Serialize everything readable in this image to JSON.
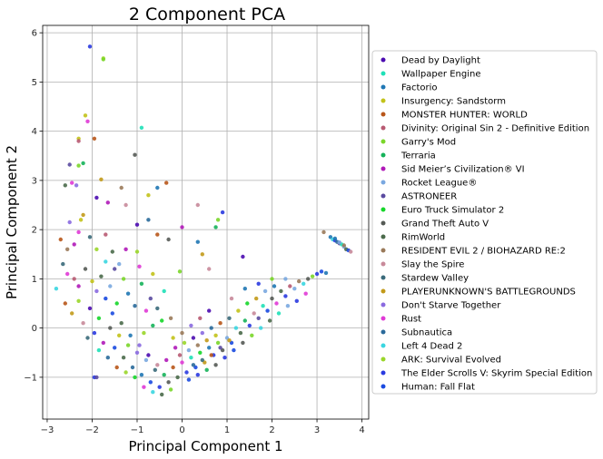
{
  "chart_data": {
    "type": "scatter",
    "title": "2 Component PCA",
    "xlabel": "Principal Component 1",
    "ylabel": "Principal Component 2",
    "xlim": [
      -3.1,
      4.15
    ],
    "ylim": [
      -1.85,
      6.15
    ],
    "xticks": [
      -3,
      -2,
      -1,
      0,
      1,
      2,
      3,
      4
    ],
    "yticks": [
      -1,
      0,
      1,
      2,
      3,
      4,
      5,
      6
    ],
    "grid": true,
    "legend_position": "right, outside plot area",
    "series": [
      {
        "name": "Dead by Daylight",
        "color": "#4b0bb0"
      },
      {
        "name": "Wallpaper Engine",
        "color": "#1fe0b7"
      },
      {
        "name": "Factorio",
        "color": "#1f77b4"
      },
      {
        "name": "Insurgency: Sandstorm",
        "color": "#c2c21a"
      },
      {
        "name": "MONSTER HUNTER: WORLD",
        "color": "#b8561a"
      },
      {
        "name": "Divinity: Original Sin 2 - Definitive Edition",
        "color": "#b85a72"
      },
      {
        "name": "Garry's Mod",
        "color": "#7ad62a"
      },
      {
        "name": "Terraria",
        "color": "#16b25a"
      },
      {
        "name": "Sid Meier's Civilization® VI",
        "color": "#b01ab8"
      },
      {
        "name": "Rocket League®",
        "color": "#7aa8e0"
      },
      {
        "name": "ASTRONEER",
        "color": "#5a4aa0"
      },
      {
        "name": "Euro Truck Simulator 2",
        "color": "#16d62a"
      },
      {
        "name": "Grand Theft Auto V",
        "color": "#555a55"
      },
      {
        "name": "RimWorld",
        "color": "#4a6a4a"
      },
      {
        "name": "RESIDENT EVIL 2 / BIOHAZARD RE:2",
        "color": "#9a7a5a"
      },
      {
        "name": "Slay the Spire",
        "color": "#c88a9a"
      },
      {
        "name": "Stardew Valley",
        "color": "#3a6a7a"
      },
      {
        "name": "PLAYERUNKNOWN'S BATTLEGROUNDS",
        "color": "#c29a1a"
      },
      {
        "name": "Don't Starve Together",
        "color": "#8a6ae0"
      },
      {
        "name": "Rust",
        "color": "#e03ad6"
      },
      {
        "name": "Subnautica",
        "color": "#2a6a9a"
      },
      {
        "name": "Left 4 Dead 2",
        "color": "#3ad6e0"
      },
      {
        "name": "ARK: Survival Evolved",
        "color": "#9ad62a"
      },
      {
        "name": "The Elder Scrolls V: Skyrim Special Edition",
        "color": "#2a3ae0"
      },
      {
        "name": "Human: Fall Flat",
        "color": "#1a4ae0"
      }
    ],
    "points": [
      [
        -2.05,
        5.72,
        23
      ],
      [
        -1.75,
        5.48,
        22
      ],
      [
        -1.75,
        5.46,
        6
      ],
      [
        -2.15,
        4.32,
        3
      ],
      [
        -2.1,
        4.2,
        19
      ],
      [
        -2.3,
        3.85,
        3
      ],
      [
        -2.3,
        3.8,
        5
      ],
      [
        -1.95,
        3.85,
        4
      ],
      [
        -0.9,
        4.07,
        1
      ],
      [
        -2.5,
        3.32,
        10
      ],
      [
        -2.3,
        3.3,
        6
      ],
      [
        -2.2,
        3.35,
        7
      ],
      [
        -1.05,
        3.52,
        12
      ],
      [
        -1.8,
        3.02,
        17
      ],
      [
        -2.6,
        2.9,
        13
      ],
      [
        -2.45,
        2.95,
        19
      ],
      [
        -2.35,
        2.9,
        18
      ],
      [
        -1.35,
        2.85,
        14
      ],
      [
        -1.65,
        2.55,
        8
      ],
      [
        -1.9,
        2.65,
        0
      ],
      [
        -0.75,
        2.7,
        3
      ],
      [
        -0.55,
        2.85,
        2
      ],
      [
        -0.35,
        2.95,
        4
      ],
      [
        -1.25,
        2.5,
        15
      ],
      [
        -0.75,
        2.2,
        20
      ],
      [
        0.35,
        2.5,
        15
      ],
      [
        0.9,
        2.35,
        23
      ],
      [
        0.75,
        2.05,
        7
      ],
      [
        0.8,
        2.2,
        6
      ],
      [
        -2.5,
        2.15,
        18
      ],
      [
        -2.25,
        2.2,
        3
      ],
      [
        -2.2,
        2.3,
        17
      ],
      [
        -2.7,
        1.8,
        4
      ],
      [
        -2.55,
        1.6,
        14
      ],
      [
        -2.4,
        1.7,
        8
      ],
      [
        -2.3,
        1.95,
        19
      ],
      [
        -2.05,
        1.85,
        16
      ],
      [
        -1.9,
        1.6,
        22
      ],
      [
        -1.7,
        1.9,
        5
      ],
      [
        -1.55,
        1.55,
        13
      ],
      [
        -1.4,
        1.3,
        9
      ],
      [
        -1.0,
        2.1,
        0
      ],
      [
        -1.0,
        1.55,
        22
      ],
      [
        -0.55,
        1.9,
        4
      ],
      [
        -0.3,
        1.8,
        12
      ],
      [
        0.0,
        2.05,
        8
      ],
      [
        0.35,
        1.75,
        2
      ],
      [
        0.45,
        1.5,
        17
      ],
      [
        1.35,
        1.45,
        0
      ],
      [
        -0.05,
        1.15,
        6
      ],
      [
        0.6,
        1.2,
        15
      ],
      [
        3.15,
        1.95,
        14
      ],
      [
        3.3,
        1.85,
        2
      ],
      [
        3.35,
        1.8,
        21
      ],
      [
        3.4,
        1.78,
        23
      ],
      [
        3.45,
        1.75,
        20
      ],
      [
        3.5,
        1.72,
        10
      ],
      [
        3.55,
        1.7,
        1
      ],
      [
        3.6,
        1.65,
        9
      ],
      [
        3.65,
        1.6,
        13
      ],
      [
        3.7,
        1.58,
        24
      ],
      [
        3.75,
        1.55,
        15
      ],
      [
        3.4,
        1.82,
        2
      ],
      [
        3.5,
        1.74,
        9
      ],
      [
        3.6,
        1.68,
        14
      ],
      [
        -2.65,
        1.3,
        16
      ],
      [
        -2.55,
        1.1,
        19
      ],
      [
        -2.4,
        1.0,
        5
      ],
      [
        -2.3,
        0.85,
        8
      ],
      [
        -2.15,
        1.2,
        12
      ],
      [
        -2.0,
        0.95,
        3
      ],
      [
        -1.9,
        0.75,
        18
      ],
      [
        -1.8,
        1.05,
        13
      ],
      [
        -1.7,
        0.6,
        24
      ],
      [
        -1.6,
        0.85,
        9
      ],
      [
        -1.45,
        0.5,
        11
      ],
      [
        -1.3,
        1.0,
        6
      ],
      [
        -1.2,
        0.7,
        2
      ],
      [
        -1.05,
        0.45,
        20
      ],
      [
        -0.9,
        0.9,
        7
      ],
      [
        -0.8,
        0.35,
        19
      ],
      [
        -0.7,
        0.6,
        10
      ],
      [
        -0.55,
        0.4,
        16
      ],
      [
        -0.4,
        0.75,
        1
      ],
      [
        -0.25,
        0.2,
        14
      ],
      [
        -2.8,
        0.8,
        21
      ],
      [
        -2.6,
        0.5,
        4
      ],
      [
        -2.45,
        0.3,
        17
      ],
      [
        -2.3,
        0.55,
        22
      ],
      [
        -2.2,
        0.1,
        15
      ],
      [
        -2.05,
        0.4,
        0
      ],
      [
        -1.95,
        -0.1,
        23
      ],
      [
        -1.85,
        0.2,
        11
      ],
      [
        -1.75,
        -0.3,
        8
      ],
      [
        -1.6,
        0.0,
        12
      ],
      [
        -1.5,
        -0.4,
        24
      ],
      [
        -1.4,
        -0.15,
        3
      ],
      [
        -1.3,
        -0.6,
        13
      ],
      [
        -1.2,
        -0.35,
        6
      ],
      [
        -1.1,
        -0.8,
        20
      ],
      [
        -1.0,
        -0.5,
        18
      ],
      [
        -0.9,
        -0.95,
        2
      ],
      [
        -0.8,
        -0.65,
        9
      ],
      [
        -0.7,
        -1.1,
        24
      ],
      [
        -0.6,
        -0.85,
        16
      ],
      [
        -0.5,
        -1.2,
        23
      ],
      [
        -0.4,
        -0.95,
        7
      ],
      [
        -0.3,
        -1.1,
        12
      ],
      [
        -0.2,
        -0.8,
        4
      ],
      [
        -0.1,
        -1.0,
        13
      ],
      [
        0.0,
        -0.7,
        19
      ],
      [
        0.1,
        -0.9,
        23
      ],
      [
        0.2,
        -0.6,
        1
      ],
      [
        0.3,
        -0.8,
        24
      ],
      [
        0.4,
        -0.5,
        11
      ],
      [
        0.5,
        -0.7,
        17
      ],
      [
        0.6,
        -0.4,
        2
      ],
      [
        0.7,
        -0.55,
        23
      ],
      [
        0.8,
        -0.3,
        6
      ],
      [
        0.9,
        -0.45,
        12
      ],
      [
        1.0,
        -0.2,
        9
      ],
      [
        1.1,
        -0.3,
        24
      ],
      [
        1.2,
        0.0,
        21
      ],
      [
        1.3,
        -0.1,
        13
      ],
      [
        1.4,
        0.15,
        7
      ],
      [
        1.5,
        0.05,
        23
      ],
      [
        1.6,
        0.3,
        15
      ],
      [
        1.7,
        0.2,
        10
      ],
      [
        1.8,
        0.45,
        1
      ],
      [
        1.9,
        0.35,
        24
      ],
      [
        2.0,
        0.6,
        12
      ],
      [
        2.1,
        0.5,
        19
      ],
      [
        2.2,
        0.75,
        13
      ],
      [
        2.3,
        0.65,
        23
      ],
      [
        2.4,
        0.85,
        5
      ],
      [
        2.5,
        0.8,
        9
      ],
      [
        2.6,
        0.95,
        14
      ],
      [
        2.7,
        0.9,
        21
      ],
      [
        2.8,
        1.0,
        12
      ],
      [
        2.9,
        1.05,
        6
      ],
      [
        3.0,
        1.1,
        23
      ],
      [
        3.1,
        1.15,
        24
      ],
      [
        3.2,
        1.12,
        2
      ],
      [
        -0.15,
        -0.4,
        8
      ],
      [
        0.05,
        -0.3,
        22
      ],
      [
        0.25,
        -0.2,
        0
      ],
      [
        0.45,
        -0.1,
        18
      ],
      [
        0.65,
        0.0,
        20
      ],
      [
        0.85,
        0.1,
        4
      ],
      [
        1.05,
        0.2,
        16
      ],
      [
        1.25,
        0.35,
        3
      ],
      [
        1.45,
        0.5,
        11
      ],
      [
        1.65,
        0.6,
        17
      ],
      [
        1.85,
        0.75,
        9
      ],
      [
        2.05,
        0.85,
        2
      ],
      [
        0.15,
        -1.05,
        24
      ],
      [
        0.35,
        -0.95,
        23
      ],
      [
        0.55,
        -0.85,
        7
      ],
      [
        0.75,
        -0.75,
        12
      ],
      [
        -0.25,
        -1.25,
        6
      ],
      [
        -0.45,
        -1.35,
        13
      ],
      [
        -0.65,
        -1.3,
        21
      ],
      [
        -0.85,
        -1.2,
        19
      ],
      [
        -1.05,
        -1.0,
        11
      ],
      [
        -1.25,
        -0.9,
        22
      ],
      [
        -1.45,
        -0.8,
        4
      ],
      [
        -1.65,
        -0.6,
        20
      ],
      [
        -1.85,
        -0.45,
        1
      ],
      [
        -1.95,
        -1.0,
        23
      ],
      [
        -1.9,
        -1.0,
        10
      ],
      [
        -2.1,
        -0.2,
        16
      ],
      [
        -0.05,
        -0.55,
        5
      ],
      [
        0.15,
        -0.45,
        9
      ],
      [
        0.35,
        -0.35,
        14
      ],
      [
        0.55,
        -0.25,
        17
      ],
      [
        0.75,
        -0.15,
        3
      ],
      [
        -0.35,
        -0.65,
        8
      ],
      [
        -0.55,
        -0.75,
        15
      ],
      [
        -0.75,
        -0.55,
        0
      ],
      [
        -0.95,
        -0.35,
        18
      ],
      [
        -1.15,
        -0.15,
        2
      ],
      [
        -1.35,
        0.1,
        13
      ],
      [
        -1.55,
        0.3,
        24
      ],
      [
        -0.45,
        0.15,
        11
      ],
      [
        -0.65,
        0.05,
        7
      ],
      [
        -0.85,
        -0.1,
        22
      ],
      [
        0.95,
        -0.6,
        23
      ],
      [
        1.15,
        -0.45,
        24
      ],
      [
        1.35,
        -0.3,
        12
      ],
      [
        1.55,
        -0.15,
        6
      ],
      [
        1.75,
        0.0,
        21
      ],
      [
        1.95,
        0.15,
        13
      ],
      [
        2.15,
        0.3,
        1
      ],
      [
        2.35,
        0.45,
        9
      ],
      [
        2.55,
        0.55,
        23
      ],
      [
        2.75,
        0.7,
        19
      ],
      [
        0.25,
        -0.75,
        20
      ],
      [
        0.45,
        -0.65,
        16
      ],
      [
        0.65,
        -0.55,
        4
      ],
      [
        0.85,
        -0.4,
        10
      ],
      [
        1.05,
        -0.25,
        17
      ],
      [
        -0.2,
        -0.2,
        3
      ],
      [
        0.0,
        -0.1,
        14
      ],
      [
        0.2,
        0.05,
        18
      ],
      [
        0.4,
        0.2,
        5
      ],
      [
        0.6,
        0.35,
        0
      ],
      [
        -1.7,
        1.35,
        21
      ],
      [
        -1.5,
        1.2,
        10
      ],
      [
        -1.25,
        1.6,
        8
      ],
      [
        -0.95,
        1.25,
        19
      ],
      [
        -0.65,
        1.1,
        3
      ],
      [
        1.1,
        0.6,
        15
      ],
      [
        1.4,
        0.8,
        2
      ],
      [
        1.7,
        0.9,
        23
      ],
      [
        2.0,
        1.0,
        6
      ],
      [
        2.3,
        1.0,
        9
      ]
    ]
  },
  "legend_entries": [
    "Dead by Daylight",
    "Wallpaper Engine",
    "Factorio",
    "Insurgency: Sandstorm",
    "MONSTER HUNTER: WORLD",
    "Divinity: Original Sin 2 - Definitive Edition",
    "Garry's Mod",
    "Terraria",
    "Sid Meier’s Civilization® VI",
    "Rocket League®",
    "ASTRONEER",
    "Euro Truck Simulator 2",
    "Grand Theft Auto V",
    "RimWorld",
    "RESIDENT EVIL 2 / BIOHAZARD RE:2",
    "Slay the Spire",
    "Stardew Valley",
    "PLAYERUNKNOWN'S BATTLEGROUNDS",
    "Don't Starve Together",
    "Rust",
    "Subnautica",
    "Left 4 Dead 2",
    "ARK: Survival Evolved",
    "The Elder Scrolls V: Skyrim Special Edition",
    "Human: Fall Flat"
  ]
}
